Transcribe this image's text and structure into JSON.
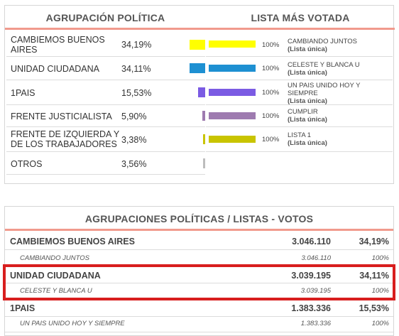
{
  "panel1": {
    "header_left": "AGRUPACIÓN POLÍTICA",
    "header_right": "LISTA MÁS VOTADA",
    "parties": [
      {
        "name": "CAMBIEMOS BUENOS AIRES",
        "pct": "34,19%",
        "color": "#ffff00",
        "share": 34.19
      },
      {
        "name": "UNIDAD CIUDADANA",
        "pct": "34,11%",
        "color": "#1e90d2",
        "share": 34.11
      },
      {
        "name": "1PAIS",
        "pct": "15,53%",
        "color": "#7b5be3",
        "share": 15.53
      },
      {
        "name": "FRENTE JUSTICIALISTA",
        "pct": "5,90%",
        "color": "#9e7bb0",
        "share": 5.9
      },
      {
        "name": "FRENTE DE IZQUIERDA Y DE LOS TRABAJADORES",
        "pct": "3,38%",
        "color": "#c9c400",
        "share": 3.38
      },
      {
        "name": "OTROS",
        "pct": "3,56%",
        "color": "#bdbdbd",
        "share": 3.56
      }
    ],
    "lists": [
      {
        "name": "CAMBIANDO JUNTOS",
        "sub": "(Lista única)",
        "pct": "100%",
        "color": "#ffff00"
      },
      {
        "name": "CELESTE Y BLANCA U",
        "sub": "(Lista única)",
        "pct": "100%",
        "color": "#1e90d2"
      },
      {
        "name": "UN PAIS UNIDO HOY Y SIEMPRE",
        "sub": "(Lista única)",
        "pct": "100%",
        "color": "#7b5be3"
      },
      {
        "name": "CUMPLIR",
        "sub": "(Lista única)",
        "pct": "100%",
        "color": "#9e7bb0"
      },
      {
        "name": "LISTA 1",
        "sub": "(Lista única)",
        "pct": "100%",
        "color": "#c9c400"
      }
    ]
  },
  "panel2": {
    "header": "AGRUPACIONES POLÍTICAS / LISTAS - VOTOS",
    "rows": [
      {
        "type": "party",
        "name": "CAMBIEMOS BUENOS AIRES",
        "votes": "3.046.110",
        "pct": "34,19%"
      },
      {
        "type": "list",
        "name": "CAMBIANDO JUNTOS",
        "votes": "3.046.110",
        "pct": "100%"
      },
      {
        "type": "party",
        "name": "UNIDAD CIUDADANA",
        "votes": "3.039.195",
        "pct": "34,11%"
      },
      {
        "type": "list",
        "name": "CELESTE Y BLANCA U",
        "votes": "3.039.195",
        "pct": "100%"
      },
      {
        "type": "party",
        "name": "1PAIS",
        "votes": "1.383.336",
        "pct": "15,53%"
      },
      {
        "type": "list",
        "name": "UN PAIS UNIDO HOY Y SIEMPRE",
        "votes": "1.383.336",
        "pct": "100%"
      }
    ]
  },
  "colors": {
    "accent_line": "#f19a8d",
    "highlight": "#d81e1e"
  }
}
